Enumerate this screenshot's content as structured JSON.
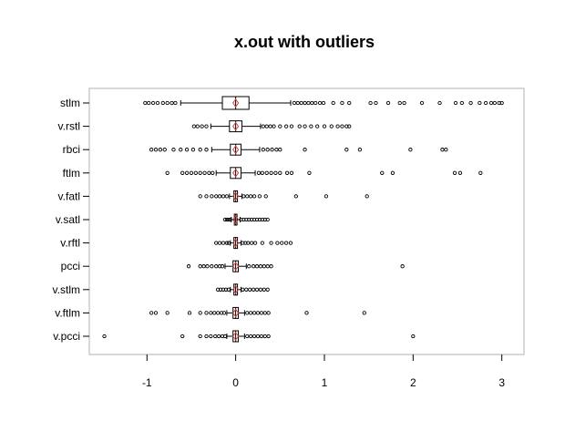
{
  "chart_data": {
    "type": "boxplot",
    "title": "x.out with outliers",
    "xlabel": "",
    "ylabel": "",
    "orientation": "horizontal",
    "xlim": [
      -1.65,
      3.25
    ],
    "xticks": [
      -1,
      0,
      1,
      2,
      3
    ],
    "xtick_labels": [
      "-1",
      "0",
      "1",
      "2",
      "3"
    ],
    "grid": false,
    "colors": {
      "box_fill": "#ffffff",
      "mean_marker": "#d04040",
      "line": "#000000",
      "frame": "#b0b0b0"
    },
    "series": [
      {
        "name": "stlm",
        "whisker_low": -0.62,
        "q1": -0.15,
        "median": 0.0,
        "q3": 0.15,
        "whisker_high": 0.62,
        "mean": 0.0,
        "outliers": [
          -1.02,
          -0.98,
          -0.93,
          -0.88,
          -0.82,
          -0.77,
          -0.72,
          -0.68,
          0.66,
          0.7,
          0.74,
          0.78,
          0.82,
          0.86,
          0.9,
          0.95,
          0.99,
          1.1,
          1.2,
          1.28,
          1.52,
          1.58,
          1.72,
          1.85,
          1.9,
          2.1,
          2.3,
          2.48,
          2.55,
          2.65,
          2.75,
          2.82,
          2.88,
          2.92,
          2.97,
          3.0
        ]
      },
      {
        "name": "v.rstl",
        "whisker_low": -0.28,
        "q1": -0.07,
        "median": 0.0,
        "q3": 0.07,
        "whisker_high": 0.28,
        "mean": 0.0,
        "outliers": [
          -0.47,
          -0.43,
          -0.38,
          -0.33,
          0.31,
          0.35,
          0.39,
          0.43,
          0.5,
          0.57,
          0.63,
          0.72,
          0.78,
          0.85,
          0.92,
          1.0,
          1.08,
          1.15,
          1.2,
          1.25,
          1.28
        ]
      },
      {
        "name": "rbci",
        "whisker_low": -0.27,
        "q1": -0.06,
        "median": 0.0,
        "q3": 0.06,
        "whisker_high": 0.27,
        "mean": 0.0,
        "outliers": [
          -0.95,
          -0.9,
          -0.85,
          -0.8,
          -0.7,
          -0.62,
          -0.55,
          -0.48,
          -0.4,
          -0.33,
          0.31,
          0.36,
          0.41,
          0.46,
          0.5,
          0.78,
          1.25,
          1.4,
          1.97,
          2.33,
          2.37
        ]
      },
      {
        "name": "ftlm",
        "whisker_low": -0.22,
        "q1": -0.06,
        "median": 0.0,
        "q3": 0.06,
        "whisker_high": 0.22,
        "mean": 0.0,
        "outliers": [
          -0.77,
          -0.6,
          -0.55,
          -0.5,
          -0.45,
          -0.4,
          -0.35,
          -0.3,
          -0.26,
          0.26,
          0.3,
          0.35,
          0.4,
          0.45,
          0.5,
          0.58,
          0.63,
          0.83,
          1.65,
          1.77,
          2.47,
          2.53,
          2.76
        ]
      },
      {
        "name": "v.fatl",
        "whisker_low": -0.07,
        "q1": -0.02,
        "median": 0.0,
        "q3": 0.02,
        "whisker_high": 0.07,
        "mean": 0.0,
        "outliers": [
          -0.4,
          -0.33,
          -0.27,
          -0.22,
          -0.18,
          -0.14,
          -0.1,
          0.09,
          0.13,
          0.17,
          0.21,
          0.27,
          0.34,
          0.68,
          1.02,
          1.48
        ]
      },
      {
        "name": "v.satl",
        "whisker_low": -0.05,
        "q1": -0.015,
        "median": 0.0,
        "q3": 0.015,
        "whisker_high": 0.05,
        "mean": 0.0,
        "outliers": [
          -0.12,
          -0.1,
          -0.08,
          -0.06,
          0.06,
          0.09,
          0.12,
          0.15,
          0.18,
          0.21,
          0.24,
          0.27,
          0.3,
          0.33,
          0.36
        ]
      },
      {
        "name": "v.rftl",
        "whisker_low": -0.06,
        "q1": -0.02,
        "median": 0.0,
        "q3": 0.02,
        "whisker_high": 0.06,
        "mean": 0.0,
        "outliers": [
          -0.22,
          -0.18,
          -0.14,
          -0.1,
          -0.08,
          0.08,
          0.11,
          0.14,
          0.18,
          0.22,
          0.3,
          0.4,
          0.47,
          0.52,
          0.57,
          0.62
        ]
      },
      {
        "name": "pcci",
        "whisker_low": -0.12,
        "q1": -0.03,
        "median": 0.0,
        "q3": 0.03,
        "whisker_high": 0.12,
        "mean": 0.0,
        "outliers": [
          -0.53,
          -0.4,
          -0.36,
          -0.32,
          -0.27,
          -0.22,
          -0.18,
          -0.15,
          0.15,
          0.2,
          0.24,
          0.28,
          0.32,
          0.36,
          0.4,
          1.88
        ]
      },
      {
        "name": "v.stlm",
        "whisker_low": -0.06,
        "q1": -0.02,
        "median": 0.0,
        "q3": 0.02,
        "whisker_high": 0.06,
        "mean": 0.0,
        "outliers": [
          -0.2,
          -0.17,
          -0.14,
          -0.11,
          -0.08,
          0.08,
          0.12,
          0.16,
          0.2,
          0.24,
          0.28,
          0.32,
          0.36
        ]
      },
      {
        "name": "v.ftlm",
        "whisker_low": -0.1,
        "q1": -0.03,
        "median": 0.0,
        "q3": 0.03,
        "whisker_high": 0.1,
        "mean": 0.0,
        "outliers": [
          -0.95,
          -0.9,
          -0.77,
          -0.52,
          -0.4,
          -0.33,
          -0.28,
          -0.24,
          -0.2,
          -0.16,
          -0.13,
          0.13,
          0.17,
          0.21,
          0.25,
          0.29,
          0.33,
          0.37,
          0.8,
          1.45
        ]
      },
      {
        "name": "v.pcci",
        "whisker_low": -0.1,
        "q1": -0.03,
        "median": 0.0,
        "q3": 0.03,
        "whisker_high": 0.1,
        "mean": 0.0,
        "outliers": [
          -1.48,
          -0.6,
          -0.4,
          -0.33,
          -0.28,
          -0.23,
          -0.19,
          -0.15,
          -0.12,
          0.13,
          0.17,
          0.21,
          0.25,
          0.29,
          0.33,
          0.37,
          2.0
        ]
      }
    ]
  }
}
